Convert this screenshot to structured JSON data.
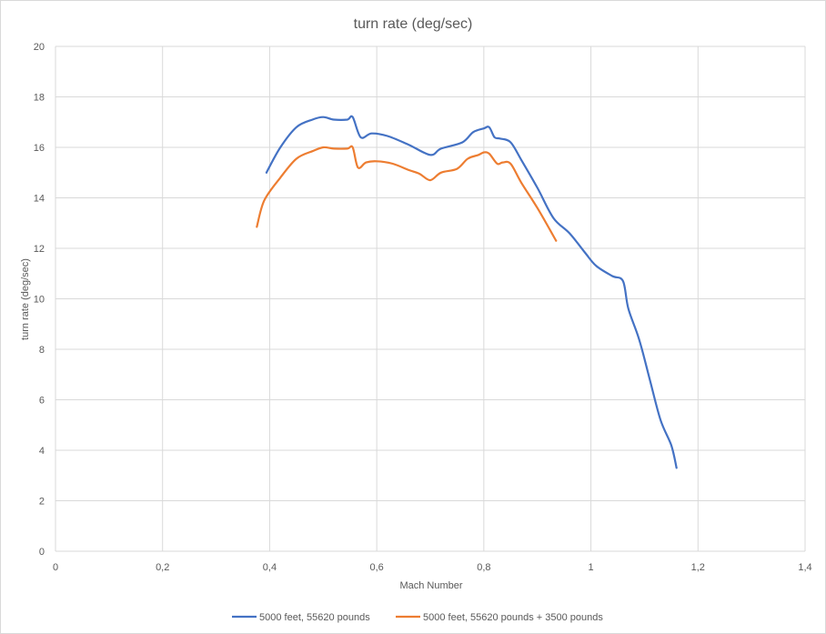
{
  "chart_data": {
    "type": "line",
    "title": "turn rate (deg/sec)",
    "xlabel": "Mach Number",
    "ylabel": "turn rate (deg/sec)",
    "xlim": [
      0,
      1.4
    ],
    "ylim": [
      0,
      20
    ],
    "x_ticks": [
      0,
      0.2,
      0.4,
      0.6,
      0.8,
      1,
      1.2,
      1.4
    ],
    "x_tick_labels": [
      "0",
      "0,2",
      "0,4",
      "0,6",
      "0,8",
      "1",
      "1,2",
      "1,4"
    ],
    "y_ticks": [
      0,
      2,
      4,
      6,
      8,
      10,
      12,
      14,
      16,
      18,
      20
    ],
    "y_tick_labels": [
      "0",
      "2",
      "4",
      "6",
      "8",
      "10",
      "12",
      "14",
      "16",
      "18",
      "20"
    ],
    "grid": true,
    "legend_position": "bottom",
    "series": [
      {
        "name": "5000 feet, 55620 pounds",
        "color": "#4472c4",
        "x": [
          0.394,
          0.42,
          0.45,
          0.48,
          0.5,
          0.52,
          0.545,
          0.555,
          0.57,
          0.59,
          0.62,
          0.66,
          0.7,
          0.72,
          0.76,
          0.78,
          0.8,
          0.81,
          0.82,
          0.83,
          0.85,
          0.87,
          0.9,
          0.93,
          0.96,
          0.99,
          1.01,
          1.04,
          1.06,
          1.07,
          1.09,
          1.11,
          1.13,
          1.15,
          1.16
        ],
        "y": [
          15.0,
          16.0,
          16.8,
          17.1,
          17.2,
          17.1,
          17.1,
          17.2,
          16.4,
          16.55,
          16.45,
          16.1,
          15.7,
          15.95,
          16.2,
          16.6,
          16.75,
          16.8,
          16.4,
          16.35,
          16.2,
          15.5,
          14.4,
          13.2,
          12.6,
          11.8,
          11.3,
          10.9,
          10.7,
          9.6,
          8.4,
          6.8,
          5.2,
          4.2,
          3.3
        ]
      },
      {
        "name": "5000 feet, 55620 pounds + 3500 pounds",
        "color": "#ed7d31",
        "x": [
          0.376,
          0.39,
          0.42,
          0.45,
          0.48,
          0.5,
          0.52,
          0.545,
          0.555,
          0.565,
          0.58,
          0.6,
          0.63,
          0.66,
          0.68,
          0.7,
          0.72,
          0.75,
          0.77,
          0.79,
          0.8,
          0.81,
          0.825,
          0.835,
          0.85,
          0.87,
          0.9,
          0.935
        ],
        "y": [
          12.85,
          13.9,
          14.8,
          15.55,
          15.85,
          16.0,
          15.95,
          15.95,
          16.0,
          15.2,
          15.4,
          15.45,
          15.35,
          15.1,
          14.95,
          14.7,
          15.0,
          15.15,
          15.55,
          15.7,
          15.8,
          15.75,
          15.35,
          15.4,
          15.35,
          14.6,
          13.6,
          12.3
        ]
      }
    ]
  }
}
